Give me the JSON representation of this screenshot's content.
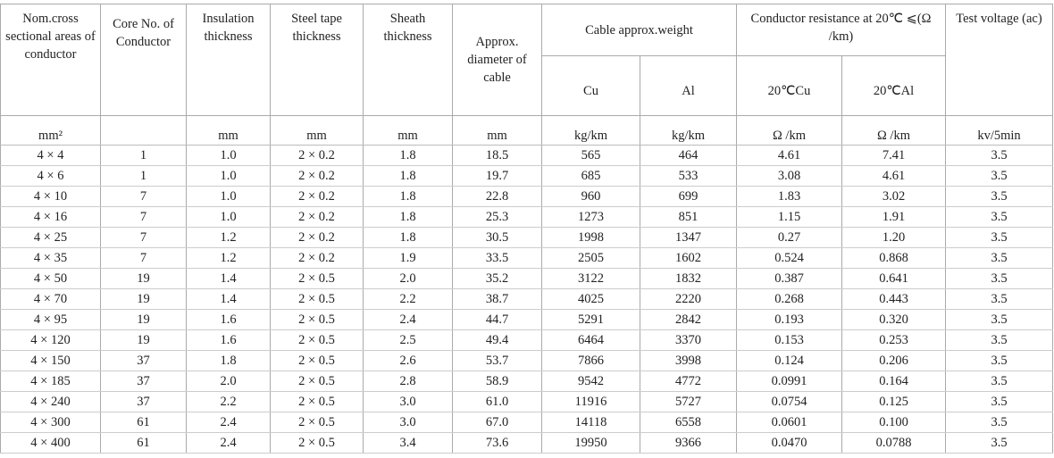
{
  "table": {
    "headers": [
      "Nom.cross sectional areas of conductor",
      "Core No. of Conductor",
      "Insulation thickness",
      "Steel tape thickness",
      "Sheath thickness",
      "Approx. diameter of cable",
      "Cable approx.weight",
      "Conductor resistance at 20℃ ⩽(Ω /km)",
      "Test voltage (ac)"
    ],
    "subheaders": [
      "Cu",
      "Al",
      "20℃Cu",
      "20℃Al"
    ],
    "units": [
      "mm²",
      null,
      "mm",
      "mm",
      "mm",
      "mm",
      "kg/km",
      "kg/km",
      "Ω /km",
      "Ω /km",
      "kv/5min"
    ],
    "rows": [
      [
        "4 × 4",
        "1",
        "1.0",
        "2 × 0.2",
        "1.8",
        "18.5",
        "565",
        "464",
        "4.61",
        "7.41",
        "3.5"
      ],
      [
        "4 × 6",
        "1",
        "1.0",
        "2 × 0.2",
        "1.8",
        "19.7",
        "685",
        "533",
        "3.08",
        "4.61",
        "3.5"
      ],
      [
        "4 × 10",
        "7",
        "1.0",
        "2 × 0.2",
        "1.8",
        "22.8",
        "960",
        "699",
        "1.83",
        "3.02",
        "3.5"
      ],
      [
        "4 × 16",
        "7",
        "1.0",
        "2 × 0.2",
        "1.8",
        "25.3",
        "1273",
        "851",
        "1.15",
        "1.91",
        "3.5"
      ],
      [
        "4 × 25",
        "7",
        "1.2",
        "2 × 0.2",
        "1.8",
        "30.5",
        "1998",
        "1347",
        "0.27",
        "1.20",
        "3.5"
      ],
      [
        "4 × 35",
        "7",
        "1.2",
        "2 × 0.2",
        "1.9",
        "33.5",
        "2505",
        "1602",
        "0.524",
        "0.868",
        "3.5"
      ],
      [
        "4 × 50",
        "19",
        "1.4",
        "2 × 0.5",
        "2.0",
        "35.2",
        "3122",
        "1832",
        "0.387",
        "0.641",
        "3.5"
      ],
      [
        "4 × 70",
        "19",
        "1.4",
        "2 × 0.5",
        "2.2",
        "38.7",
        "4025",
        "2220",
        "0.268",
        "0.443",
        "3.5"
      ],
      [
        "4 × 95",
        "19",
        "1.6",
        "2 × 0.5",
        "2.4",
        "44.7",
        "5291",
        "2842",
        "0.193",
        "0.320",
        "3.5"
      ],
      [
        "4 × 120",
        "19",
        "1.6",
        "2 × 0.5",
        "2.5",
        "49.4",
        "6464",
        "3370",
        "0.153",
        "0.253",
        "3.5"
      ],
      [
        "4 × 150",
        "37",
        "1.8",
        "2 × 0.5",
        "2.6",
        "53.7",
        "7866",
        "3998",
        "0.124",
        "0.206",
        "3.5"
      ],
      [
        "4 × 185",
        "37",
        "2.0",
        "2 × 0.5",
        "2.8",
        "58.9",
        "9542",
        "4772",
        "0.0991",
        "0.164",
        "3.5"
      ],
      [
        "4 × 240",
        "37",
        "2.2",
        "2 × 0.5",
        "3.0",
        "61.0",
        "11916",
        "5727",
        "0.0754",
        "0.125",
        "3.5"
      ],
      [
        "4 × 300",
        "61",
        "2.4",
        "2 × 0.5",
        "3.0",
        "67.0",
        "14118",
        "6558",
        "0.0601",
        "0.100",
        "3.5"
      ],
      [
        "4 × 400",
        "61",
        "2.4",
        "2 × 0.5",
        "3.4",
        "73.6",
        "19950",
        "9366",
        "0.0470",
        "0.0788",
        "3.5"
      ]
    ]
  }
}
